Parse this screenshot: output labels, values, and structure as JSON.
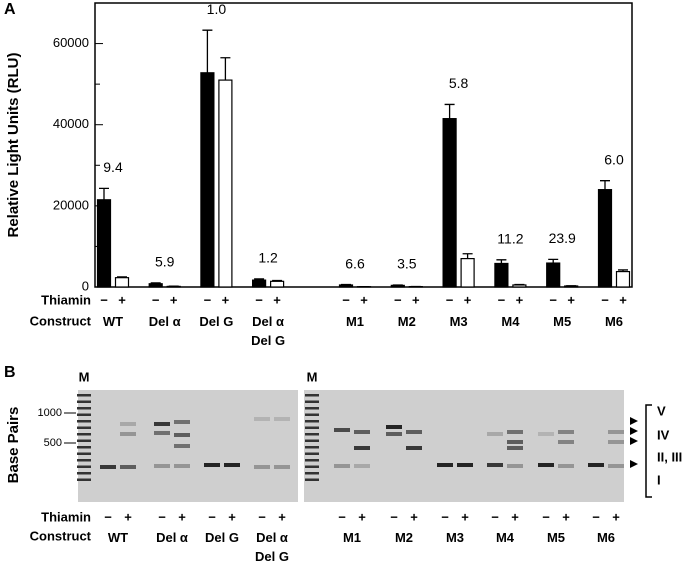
{
  "chart_data": {
    "type": "bar",
    "panel_label": "A",
    "y_label": "Relative Light Units (RLU)",
    "row_labels": [
      "Thiamin",
      "Construct"
    ],
    "categories": [
      "WT",
      "Del α",
      "Del G",
      "Del α\nDel G",
      "M1",
      "M2",
      "M3",
      "M4",
      "M5",
      "M6"
    ],
    "series": [
      {
        "name": "−",
        "color": "#000000",
        "values": [
          21500,
          800,
          52800,
          1700,
          500,
          400,
          41500,
          5800,
          5900,
          24000
        ],
        "errors": [
          2800,
          200,
          10500,
          300,
          100,
          100,
          3500,
          900,
          900,
          2200
        ]
      },
      {
        "name": "+",
        "color": "#ffffff",
        "values": [
          2300,
          150,
          51000,
          1400,
          80,
          100,
          7000,
          500,
          250,
          3800
        ],
        "errors": [
          200,
          50,
          5500,
          200,
          20,
          20,
          1200,
          100,
          50,
          400
        ]
      }
    ],
    "annotations": [
      "9.4",
      "5.9",
      "1.0",
      "1.2",
      "6.6",
      "3.5",
      "5.8",
      "11.2",
      "23.9",
      "6.0"
    ],
    "ylim": [
      0,
      70000
    ],
    "yticks": [
      0,
      20000,
      40000,
      60000
    ],
    "yminor": [
      10000,
      30000,
      50000,
      70000
    ]
  },
  "panel_b": {
    "panel_label": "B",
    "marker": "M",
    "y_label": "Base Pairs",
    "size_labels": [
      "1000",
      "500"
    ],
    "row_labels": [
      "Thiamin",
      "Construct"
    ],
    "thiamin": [
      "−",
      "+"
    ],
    "lanes_left": [
      "WT",
      "Del α",
      "Del G",
      "Del α\nDel G"
    ],
    "lanes_right": [
      "M1",
      "M2",
      "M3",
      "M4",
      "M5",
      "M6"
    ],
    "bands": [
      "V",
      "IV",
      "II, III",
      "I"
    ]
  }
}
